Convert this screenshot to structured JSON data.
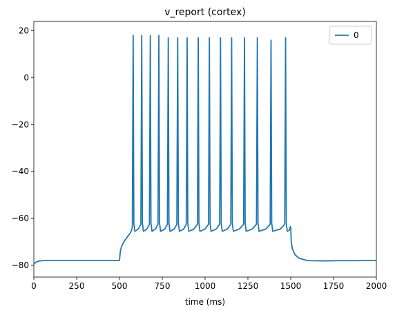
{
  "chart_data": {
    "type": "line",
    "title": "v_report (cortex)",
    "xlabel": "time (ms)",
    "ylabel": "",
    "xlim": [
      0,
      2000
    ],
    "ylim": [
      -85,
      24
    ],
    "xticks": [
      0,
      250,
      500,
      750,
      1000,
      1250,
      1500,
      1750,
      2000
    ],
    "yticks": [
      20,
      0,
      -20,
      -40,
      -60,
      -80
    ],
    "grid": false,
    "legend": "top-right",
    "series": [
      {
        "name": "0",
        "color": "#1f77b4",
        "spike_times": [
          580,
          630,
          680,
          730,
          785,
          840,
          895,
          960,
          1025,
          1090,
          1155,
          1230,
          1305,
          1385,
          1470
        ],
        "spike_peaks": [
          18,
          18,
          18,
          18,
          17,
          17,
          17,
          17,
          17,
          17,
          17,
          17,
          17,
          16,
          17
        ],
        "points": [
          [
            0,
            -79.5
          ],
          [
            10,
            -78.8
          ],
          [
            25,
            -78.2
          ],
          [
            50,
            -78.0
          ],
          [
            100,
            -77.9
          ],
          [
            200,
            -77.9
          ],
          [
            300,
            -77.9
          ],
          [
            400,
            -77.9
          ],
          [
            499,
            -77.9
          ],
          [
            500,
            -77.9
          ],
          [
            505,
            -74.0
          ],
          [
            512,
            -72.0
          ],
          [
            525,
            -70.0
          ],
          [
            545,
            -68.0
          ],
          [
            565,
            -66.0
          ],
          [
            575,
            -64.0
          ],
          [
            580,
            18
          ],
          [
            584,
            -62
          ],
          [
            590,
            -65.5
          ],
          [
            610,
            -64.5
          ],
          [
            625,
            -62.5
          ],
          [
            630,
            18
          ],
          [
            634,
            -62
          ],
          [
            640,
            -65.5
          ],
          [
            660,
            -64.5
          ],
          [
            675,
            -62.5
          ],
          [
            680,
            18
          ],
          [
            684,
            -62
          ],
          [
            690,
            -65.5
          ],
          [
            710,
            -64.5
          ],
          [
            725,
            -62.5
          ],
          [
            730,
            18
          ],
          [
            734,
            -62
          ],
          [
            740,
            -65.5
          ],
          [
            765,
            -64.5
          ],
          [
            780,
            -62.5
          ],
          [
            785,
            17
          ],
          [
            789,
            -62
          ],
          [
            795,
            -65.5
          ],
          [
            820,
            -64.5
          ],
          [
            835,
            -62.5
          ],
          [
            840,
            17
          ],
          [
            844,
            -62
          ],
          [
            850,
            -65.5
          ],
          [
            875,
            -64.5
          ],
          [
            890,
            -62.5
          ],
          [
            895,
            17
          ],
          [
            899,
            -62
          ],
          [
            905,
            -65.5
          ],
          [
            935,
            -64.5
          ],
          [
            955,
            -62.5
          ],
          [
            960,
            17
          ],
          [
            964,
            -62
          ],
          [
            970,
            -65.5
          ],
          [
            1000,
            -64.5
          ],
          [
            1020,
            -62.5
          ],
          [
            1025,
            17
          ],
          [
            1029,
            -62
          ],
          [
            1035,
            -65.5
          ],
          [
            1065,
            -64.5
          ],
          [
            1085,
            -62.5
          ],
          [
            1090,
            17
          ],
          [
            1094,
            -62
          ],
          [
            1100,
            -65.5
          ],
          [
            1130,
            -64.5
          ],
          [
            1150,
            -62.5
          ],
          [
            1155,
            17
          ],
          [
            1159,
            -62
          ],
          [
            1165,
            -65.5
          ],
          [
            1200,
            -64.5
          ],
          [
            1225,
            -62.5
          ],
          [
            1230,
            17
          ],
          [
            1234,
            -62
          ],
          [
            1240,
            -65.5
          ],
          [
            1275,
            -64.5
          ],
          [
            1300,
            -62.5
          ],
          [
            1305,
            17
          ],
          [
            1309,
            -62
          ],
          [
            1315,
            -65.5
          ],
          [
            1355,
            -64.5
          ],
          [
            1380,
            -62.5
          ],
          [
            1385,
            16
          ],
          [
            1389,
            -62
          ],
          [
            1395,
            -65.5
          ],
          [
            1440,
            -64.5
          ],
          [
            1465,
            -62.5
          ],
          [
            1470,
            17
          ],
          [
            1474,
            -62
          ],
          [
            1480,
            -65.5
          ],
          [
            1492,
            -65
          ],
          [
            1498,
            -63.5
          ],
          [
            1500,
            -64
          ],
          [
            1503,
            -70
          ],
          [
            1510,
            -73
          ],
          [
            1525,
            -75.5
          ],
          [
            1550,
            -77
          ],
          [
            1600,
            -78
          ],
          [
            1700,
            -78.1
          ],
          [
            1800,
            -78.0
          ],
          [
            1900,
            -78.0
          ],
          [
            2000,
            -77.9
          ]
        ]
      }
    ]
  }
}
